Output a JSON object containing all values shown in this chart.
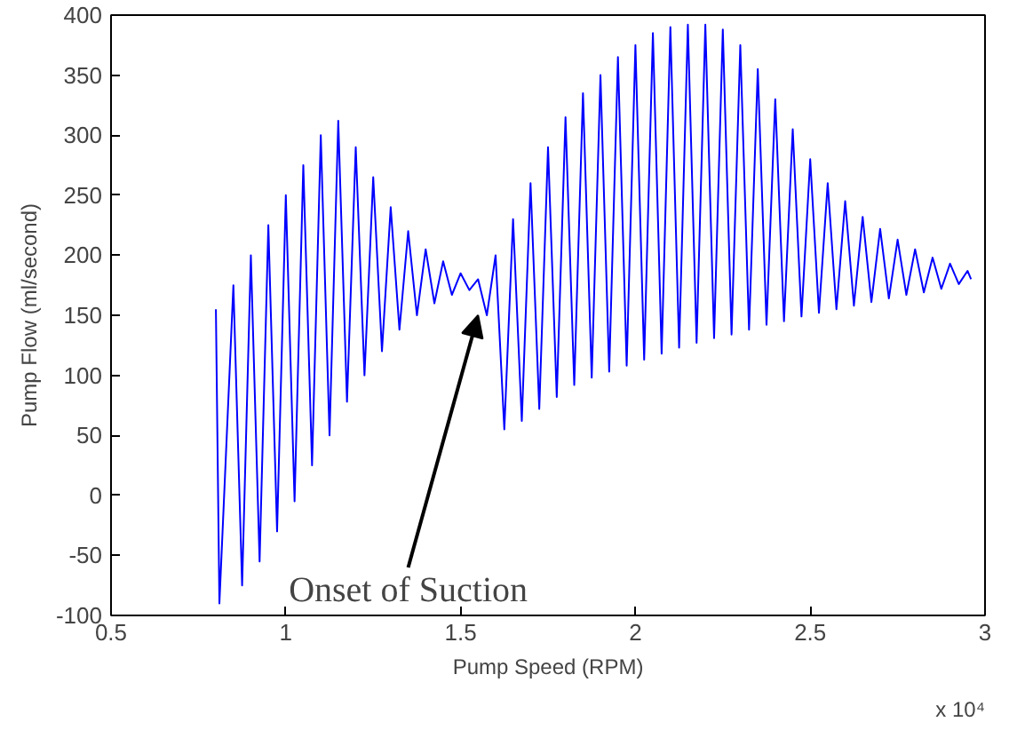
{
  "chart_data": {
    "type": "line",
    "xlabel": "Pump Speed (RPM)",
    "ylabel": "Pump Flow (ml/second)",
    "x": [
      0.8,
      0.81,
      0.85,
      0.875,
      0.9,
      0.925,
      0.95,
      0.975,
      1.0,
      1.025,
      1.05,
      1.075,
      1.1,
      1.125,
      1.15,
      1.175,
      1.2,
      1.225,
      1.25,
      1.275,
      1.3,
      1.325,
      1.35,
      1.375,
      1.4,
      1.425,
      1.45,
      1.475,
      1.5,
      1.525,
      1.55,
      1.575,
      1.6,
      1.625,
      1.65,
      1.675,
      1.7,
      1.725,
      1.75,
      1.775,
      1.8,
      1.825,
      1.85,
      1.875,
      1.9,
      1.925,
      1.95,
      1.975,
      2.0,
      2.025,
      2.05,
      2.075,
      2.1,
      2.125,
      2.15,
      2.175,
      2.2,
      2.225,
      2.25,
      2.275,
      2.3,
      2.325,
      2.35,
      2.375,
      2.4,
      2.425,
      2.45,
      2.475,
      2.5,
      2.525,
      2.55,
      2.575,
      2.6,
      2.625,
      2.65,
      2.675,
      2.7,
      2.725,
      2.75,
      2.775,
      2.8,
      2.825,
      2.85,
      2.875,
      2.9,
      2.925,
      2.95,
      2.96
    ],
    "series": [
      {
        "color": "#0000ff",
        "values": [
          155,
          -90,
          175,
          -75,
          200,
          -55,
          225,
          -30,
          250,
          -5,
          275,
          25,
          300,
          50,
          312,
          78,
          290,
          100,
          265,
          120,
          240,
          138,
          220,
          150,
          205,
          160,
          195,
          167,
          185,
          171,
          180,
          150,
          200,
          55,
          230,
          62,
          260,
          72,
          290,
          82,
          315,
          92,
          335,
          98,
          350,
          103,
          365,
          108,
          375,
          113,
          385,
          118,
          390,
          123,
          392,
          127,
          392,
          131,
          388,
          134,
          375,
          138,
          355,
          142,
          330,
          145,
          305,
          149,
          280,
          152,
          260,
          155,
          245,
          158,
          232,
          161,
          222,
          164,
          213,
          167,
          205,
          169,
          198,
          172,
          193,
          176,
          187,
          180
        ]
      }
    ],
    "xlim": [
      0.5,
      3
    ],
    "xticks": [
      0.5,
      1,
      1.5,
      2,
      2.5,
      3
    ],
    "ylim": [
      -100,
      400
    ],
    "yticks": [
      -100,
      -50,
      0,
      50,
      100,
      150,
      200,
      250,
      300,
      350,
      400
    ],
    "annotations": [
      {
        "text": "Onset of Suction",
        "x": 1.55,
        "y": 150
      },
      "x 10⁴"
    ],
    "grid": false
  }
}
